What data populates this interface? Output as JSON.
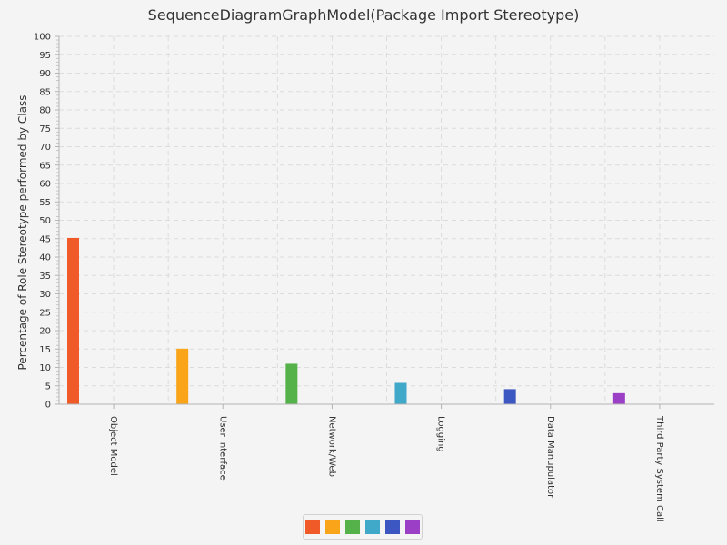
{
  "chart_data": {
    "type": "bar",
    "title": "SequenceDiagramGraphModel(Package Import Stereotype)",
    "xlabel": "",
    "ylabel": "Percentage of Role Stereotype performed by Class",
    "categories": [
      "Object Model",
      "User Interface",
      "Network/Web",
      "Logging",
      "Data Manupulator",
      "Third Party System Call"
    ],
    "values": [
      45.2,
      15.1,
      11.0,
      5.8,
      4.1,
      3.0
    ],
    "ylim": [
      0,
      100
    ],
    "ytick_step": 5,
    "grid": true,
    "legend_position": "bottom",
    "colors": [
      "#f05a28",
      "#faa41a",
      "#55b24b",
      "#40a8c8",
      "#3d57c2",
      "#9a3fc6"
    ]
  }
}
